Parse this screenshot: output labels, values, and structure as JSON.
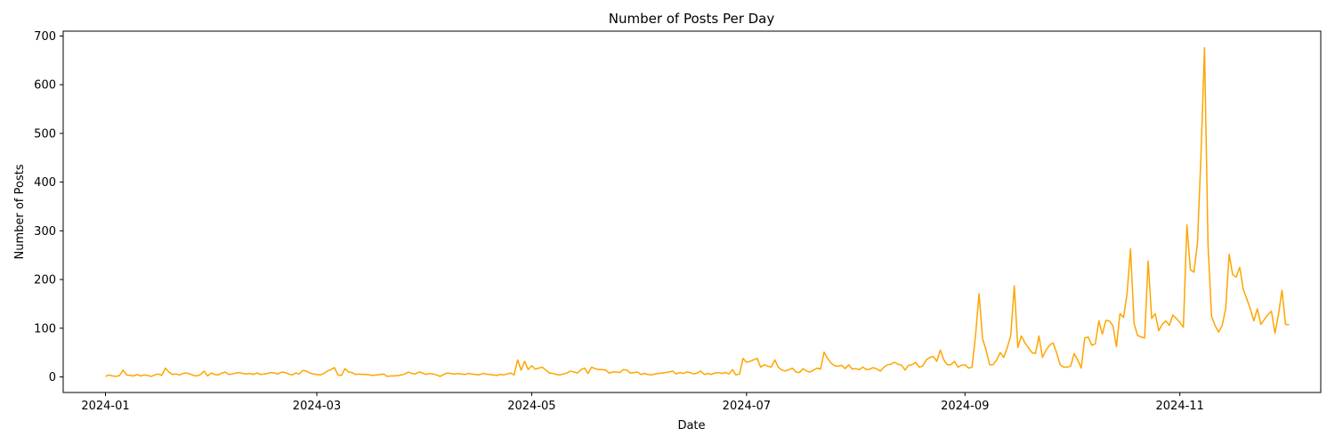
{
  "chart_data": {
    "type": "line",
    "title": "Number of Posts Per Day",
    "xlabel": "Date",
    "ylabel": "Number of Posts",
    "line_color": "#ffa500",
    "grid": false,
    "x_range": [
      "2023-12-20",
      "2024-12-11"
    ],
    "ylim": [
      -32,
      710
    ],
    "x_ticks": [
      "2024-01-01",
      "2024-03-01",
      "2024-05-01",
      "2024-07-01",
      "2024-09-01",
      "2024-11-01"
    ],
    "x_tick_labels": [
      "2024-01",
      "2024-03",
      "2024-05",
      "2024-07",
      "2024-09",
      "2024-11"
    ],
    "y_ticks": [
      0,
      100,
      200,
      300,
      400,
      500,
      600,
      700
    ],
    "series": [
      {
        "x_start": "2024-01-01",
        "values": [
          1,
          4,
          2,
          1,
          3,
          14,
          4,
          3,
          2,
          5,
          2,
          4,
          3,
          1,
          4,
          6,
          3,
          18,
          10,
          5,
          6,
          4,
          7,
          8,
          6,
          3,
          2,
          5,
          12,
          2,
          8,
          5,
          4,
          8,
          10,
          5,
          6,
          8,
          9,
          7,
          6,
          7,
          5,
          8,
          5,
          6,
          7,
          9,
          8,
          6,
          10,
          9,
          6,
          4,
          8,
          6,
          13,
          12,
          8,
          6,
          5,
          4,
          7,
          12,
          15,
          19,
          4,
          3,
          17,
          10,
          9,
          5,
          6,
          5,
          5,
          4,
          3,
          4,
          5,
          6,
          1,
          2,
          2,
          3,
          4,
          6,
          10,
          7,
          6,
          10,
          8,
          5,
          7,
          6,
          4,
          1,
          5,
          8,
          7,
          6,
          7,
          6,
          5,
          7,
          6,
          5,
          4,
          7,
          6,
          5,
          4,
          3,
          5,
          4,
          6,
          8,
          4,
          35,
          14,
          32,
          15,
          23,
          16,
          18,
          20,
          14,
          8,
          7,
          5,
          4,
          6,
          8,
          12,
          10,
          8,
          15,
          18,
          7,
          20,
          17,
          15,
          15,
          14,
          8,
          10,
          10,
          9,
          15,
          14,
          8,
          9,
          10,
          5,
          7,
          5,
          4,
          6,
          7,
          8,
          9,
          10,
          12,
          6,
          9,
          7,
          10,
          9,
          6,
          8,
          12,
          5,
          7,
          5,
          8,
          9,
          7,
          9,
          6,
          15,
          4,
          6,
          38,
          30,
          32,
          35,
          38,
          20,
          25,
          22,
          20,
          35,
          20,
          14,
          12,
          15,
          18,
          10,
          9,
          17,
          12,
          10,
          14,
          18,
          16,
          51,
          38,
          28,
          23,
          22,
          24,
          17,
          25,
          16,
          17,
          15,
          20,
          15,
          16,
          19,
          16,
          12,
          20,
          25,
          26,
          30,
          26,
          24,
          14,
          24,
          25,
          30,
          20,
          22,
          35,
          40,
          42,
          32,
          55,
          35,
          25,
          25,
          32,
          20,
          24,
          25,
          18,
          20,
          85,
          171,
          78,
          55,
          25,
          25,
          35,
          50,
          40,
          60,
          85,
          187,
          60,
          84,
          70,
          60,
          50,
          48,
          84,
          40,
          55,
          65,
          70,
          50,
          25,
          20,
          20,
          22,
          48,
          35,
          18,
          80,
          82,
          65,
          68,
          115,
          88,
          116,
          115,
          105,
          62,
          130,
          122,
          170,
          263,
          110,
          85,
          82,
          80,
          238,
          120,
          130,
          95,
          108,
          115,
          106,
          127,
          120,
          112,
          102,
          312,
          220,
          215,
          275,
          455,
          676,
          270,
          125,
          105,
          92,
          105,
          140,
          252,
          210,
          205,
          225,
          180,
          160,
          140,
          115,
          140,
          108,
          118,
          128,
          135,
          90,
          128,
          178,
          108,
          107
        ]
      }
    ]
  }
}
